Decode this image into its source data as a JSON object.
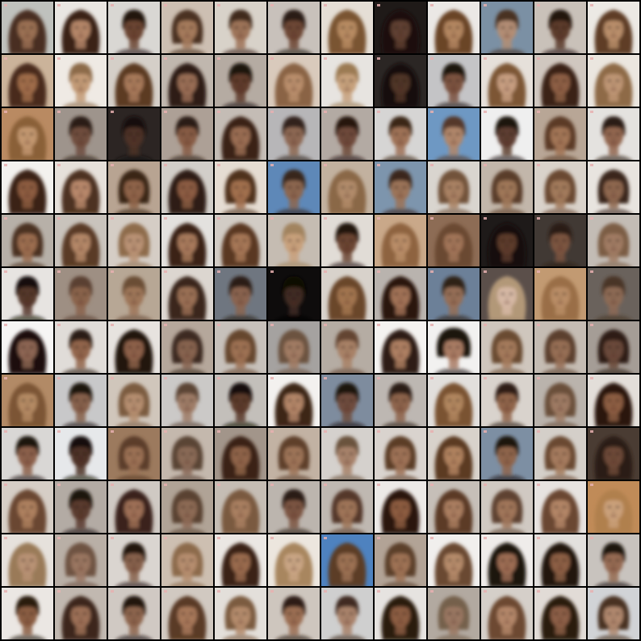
{
  "grid": {
    "rows": 12,
    "cols": 12,
    "background_color": "#000000",
    "cells": [
      [
        {
          "bg": "#bfc1bd",
          "skin": "#9a6f52",
          "hair": "#4a2f22",
          "style": "long"
        },
        {
          "bg": "#e9e6e2",
          "skin": "#b48568",
          "hair": "#3a2418",
          "style": "long"
        },
        {
          "bg": "#d9d7d3",
          "skin": "#6b4433",
          "hair": "#241611",
          "style": "short"
        },
        {
          "bg": "#cdbfb2",
          "skin": "#a57a5c",
          "hair": "#4b3222",
          "style": "medium"
        },
        {
          "bg": "#d8d2c9",
          "skin": "#9d7358",
          "hair": "#3f2a1e",
          "style": "short"
        },
        {
          "bg": "#c8c1bb",
          "skin": "#6d4634",
          "hair": "#2a1a13",
          "style": "short"
        },
        {
          "bg": "#e5ded5",
          "skin": "#b78b62",
          "hair": "#7a5430",
          "style": "long"
        },
        {
          "bg": "#1f1a18",
          "skin": "#5f4033",
          "hair": "#1a110d",
          "style": "long"
        },
        {
          "bg": "#ebe8e5",
          "skin": "#b38660",
          "hair": "#6b4528",
          "style": "long"
        },
        {
          "bg": "#7b90a4",
          "skin": "#b28d74",
          "hair": "#4a3323",
          "style": "short"
        },
        {
          "bg": "#c9c1b9",
          "skin": "#5b3a2c",
          "hair": "#24160f",
          "style": "short"
        },
        {
          "bg": "#ece9e4",
          "skin": "#b98e6a",
          "hair": "#5e3d26",
          "style": "long"
        }
      ],
      [
        {
          "bg": "#cbb39a",
          "skin": "#9f6c4a",
          "hair": "#4a2c1b",
          "style": "long"
        },
        {
          "bg": "#efeae4",
          "skin": "#c29a76",
          "hair": "#8c6a48",
          "style": "short"
        },
        {
          "bg": "#d5cfc8",
          "skin": "#a7795a",
          "hair": "#5c3a24",
          "style": "long"
        },
        {
          "bg": "#c0b7ae",
          "skin": "#986d55",
          "hair": "#2e1d15",
          "style": "long"
        },
        {
          "bg": "#b5aba2",
          "skin": "#5e3b2c",
          "hair": "#1e130e",
          "style": "short"
        },
        {
          "bg": "#d9cabc",
          "skin": "#b98e6c",
          "hair": "#8a6444",
          "style": "long"
        },
        {
          "bg": "#e7e4e0",
          "skin": "#c6a07c",
          "hair": "#9b7a52",
          "style": "short"
        },
        {
          "bg": "#2b2624",
          "skin": "#4f3427",
          "hair": "#140d0a",
          "style": "long"
        },
        {
          "bg": "#c4c4c6",
          "skin": "#7b5240",
          "hair": "#1f1510",
          "style": "short"
        },
        {
          "bg": "#e6e0da",
          "skin": "#c69d80",
          "hair": "#7d5636",
          "style": "long"
        },
        {
          "bg": "#d0c7bf",
          "skin": "#8d5f45",
          "hair": "#3a2317",
          "style": "long"
        },
        {
          "bg": "#ebe6df",
          "skin": "#be9574",
          "hair": "#8e6a46",
          "style": "long"
        }
      ],
      [
        {
          "bg": "#b98a62",
          "skin": "#c29770",
          "hair": "#8a6038",
          "style": "long"
        },
        {
          "bg": "#9e948c",
          "skin": "#6f4e3e",
          "hair": "#2c1d16",
          "style": "short"
        },
        {
          "bg": "#2c2523",
          "skin": "#4d3327",
          "hair": "#160e0b",
          "style": "short"
        },
        {
          "bg": "#ada096",
          "skin": "#875c45",
          "hair": "#2b1a12",
          "style": "short"
        },
        {
          "bg": "#c4bcb5",
          "skin": "#9a6d52",
          "hair": "#3b2419",
          "style": "long"
        },
        {
          "bg": "#b7b6b8",
          "skin": "#8d6752",
          "hair": "#33231a",
          "style": "short"
        },
        {
          "bg": "#b3aaa3",
          "skin": "#6e4a3a",
          "hair": "#26180f",
          "style": "short"
        },
        {
          "bg": "#d6d5d4",
          "skin": "#9f7257",
          "hair": "#3a2519",
          "style": "short"
        },
        {
          "bg": "#6e98c3",
          "skin": "#b0866a",
          "hair": "#55382a",
          "style": "short"
        },
        {
          "bg": "#efefef",
          "skin": "#5d3e30",
          "hair": "#1d130e",
          "style": "short"
        },
        {
          "bg": "#b8a696",
          "skin": "#a37656",
          "hair": "#5b3b26",
          "style": "medium"
        },
        {
          "bg": "#e4e2df",
          "skin": "#926650",
          "hair": "#2c1c14",
          "style": "short"
        }
      ],
      [
        {
          "bg": "#f3f1ee",
          "skin": "#8c5c40",
          "hair": "#3a2216",
          "style": "long"
        },
        {
          "bg": "#e6e0da",
          "skin": "#b7876a",
          "hair": "#4e3120",
          "style": "long"
        },
        {
          "bg": "#b8a492",
          "skin": "#8f6448",
          "hair": "#3b2518",
          "style": "medium"
        },
        {
          "bg": "#d2cec9",
          "skin": "#8b5c43",
          "hair": "#2d1b12",
          "style": "long"
        },
        {
          "bg": "#e5dcd2",
          "skin": "#a16f4e",
          "hair": "#4f301f",
          "style": "medium"
        },
        {
          "bg": "#5e88b8",
          "skin": "#8c6650",
          "hair": "#38261b",
          "style": "short"
        },
        {
          "bg": "#c2b19f",
          "skin": "#b18b6a",
          "hair": "#8a6846",
          "style": "long"
        },
        {
          "bg": "#7d95ad",
          "skin": "#9b7358",
          "hair": "#3a281d",
          "style": "short"
        },
        {
          "bg": "#d9d5cf",
          "skin": "#a98163",
          "hair": "#72523a",
          "style": "medium"
        },
        {
          "bg": "#c2b6aa",
          "skin": "#9f7758",
          "hair": "#5a3e29",
          "style": "medium"
        },
        {
          "bg": "#d9d2ca",
          "skin": "#a27a5c",
          "hair": "#6a4a32",
          "style": "medium"
        },
        {
          "bg": "#e8e4df",
          "skin": "#8f6750",
          "hair": "#3a281d",
          "style": "medium"
        }
      ],
      [
        {
          "bg": "#b7b0a8",
          "skin": "#9b6d4f",
          "hair": "#4c3120",
          "style": "medium"
        },
        {
          "bg": "#c9c3bc",
          "skin": "#b48767",
          "hair": "#5a3a25",
          "style": "long"
        },
        {
          "bg": "#d5cdc5",
          "skin": "#b99274",
          "hair": "#8e6c4c",
          "style": "medium"
        },
        {
          "bg": "#e3e1de",
          "skin": "#a7795b",
          "hair": "#3a2418",
          "style": "long"
        },
        {
          "bg": "#d2ccc5",
          "skin": "#a67756",
          "hair": "#5a3822",
          "style": "long"
        },
        {
          "bg": "#c5bcb2",
          "skin": "#c8a07c",
          "hair": "#a1835e",
          "style": "short"
        },
        {
          "bg": "#e1dcd6",
          "skin": "#6b4433",
          "hair": "#24160f",
          "style": "short"
        },
        {
          "bg": "#c9a889",
          "skin": "#b98d68",
          "hair": "#8e6440",
          "style": "long"
        },
        {
          "bg": "#8d6c55",
          "skin": "#a17458",
          "hair": "#6b4a31",
          "style": "long"
        },
        {
          "bg": "#1e1a19",
          "skin": "#5b3a2c",
          "hair": "#150d0a",
          "style": "long"
        },
        {
          "bg": "#413934",
          "skin": "#7b5441",
          "hair": "#2b1c14",
          "style": "short"
        },
        {
          "bg": "#c3bcb5",
          "skin": "#a07b63",
          "hair": "#7c5d45",
          "style": "medium"
        }
      ],
      [
        {
          "bg": "#e7e4e1",
          "skin": "#55372a",
          "hair": "#140d0a",
          "style": "short"
        },
        {
          "bg": "#9e8f83",
          "skin": "#8a634c",
          "hair": "#5a4030",
          "style": "short"
        },
        {
          "bg": "#b7a795",
          "skin": "#9e7659",
          "hair": "#6b4d35",
          "style": "short"
        },
        {
          "bg": "#dcd6d0",
          "skin": "#9a6f55",
          "hair": "#3b271b",
          "style": "long"
        },
        {
          "bg": "#6f7680",
          "skin": "#8a644f",
          "hair": "#2a1b13",
          "style": "short"
        },
        {
          "bg": "#0e0c0c",
          "skin": "#3f2b23",
          "hair": "#0a0706",
          "style": "short"
        },
        {
          "bg": "#d8d2cb",
          "skin": "#a2754f",
          "hair": "#6b462b",
          "style": "long"
        },
        {
          "bg": "#b9b3ae",
          "skin": "#a17257",
          "hair": "#2a190f",
          "style": "long"
        },
        {
          "bg": "#6c8098",
          "skin": "#956e56",
          "hair": "#2f2018",
          "style": "short"
        },
        {
          "bg": "#5b4f4a",
          "skin": "#d6b8a4",
          "hair": "#b29878",
          "style": "long"
        },
        {
          "bg": "#c29a72",
          "skin": "#b98d66",
          "hair": "#9a6e46",
          "style": "long"
        },
        {
          "bg": "#6a625c",
          "skin": "#8d6a55",
          "hair": "#4a3527",
          "style": "short"
        }
      ],
      [
        {
          "bg": "#f6f5f4",
          "skin": "#8c6552",
          "hair": "#1a110d",
          "style": "long"
        },
        {
          "bg": "#e0dcd8",
          "skin": "#92654b",
          "hair": "#2c1b12",
          "style": "short"
        },
        {
          "bg": "#e7e3df",
          "skin": "#8d614a",
          "hair": "#211610",
          "style": "long"
        },
        {
          "bg": "#b5a79b",
          "skin": "#87634f",
          "hair": "#3e2c21",
          "style": "medium"
        },
        {
          "bg": "#c7c1bb",
          "skin": "#9d7153",
          "hair": "#66462f",
          "style": "medium"
        },
        {
          "bg": "#a5a2a0",
          "skin": "#a17b63",
          "hair": "#6c523f",
          "style": "medium"
        },
        {
          "bg": "#b5acA3",
          "skin": "#a88166",
          "hair": "#634530",
          "style": "short"
        },
        {
          "bg": "#f4f2f0",
          "skin": "#ad7f62",
          "hair": "#2e1c13",
          "style": "long"
        },
        {
          "bg": "#f2f1f0",
          "skin": "#a97b64",
          "hair": "#1c120d",
          "style": "bob"
        },
        {
          "bg": "#cfc6bd",
          "skin": "#a47a5c",
          "hair": "#6b4b33",
          "style": "medium"
        },
        {
          "bg": "#c5bcb3",
          "skin": "#966e55",
          "hair": "#5c412f",
          "style": "medium"
        },
        {
          "bg": "#a59d96",
          "skin": "#6b4a3a",
          "hair": "#2e1f17",
          "style": "medium"
        }
      ],
      [
        {
          "bg": "#b28a66",
          "skin": "#b48a64",
          "hair": "#7b5534",
          "style": "long"
        },
        {
          "bg": "#c8c8c9",
          "skin": "#86604b",
          "hair": "#1d130e",
          "style": "short"
        },
        {
          "bg": "#d0c6bb",
          "skin": "#b58e70",
          "hair": "#7b5b40",
          "style": "medium"
        },
        {
          "bg": "#cbc9c7",
          "skin": "#9e7b66",
          "hair": "#5c4535",
          "style": "short"
        },
        {
          "bg": "#c3bfba",
          "skin": "#5b3b2c",
          "hair": "#160e0a",
          "style": "short"
        },
        {
          "bg": "#f3f1ef",
          "skin": "#b28567",
          "hair": "#3d2517",
          "style": "long"
        },
        {
          "bg": "#7e8c9e",
          "skin": "#6e4c3c",
          "hair": "#1f150f",
          "style": "short"
        },
        {
          "bg": "#bdb7b2",
          "skin": "#8d634b",
          "hair": "#2c1c13",
          "style": "short"
        },
        {
          "bg": "#e2dfdc",
          "skin": "#b1865f",
          "hair": "#7a5331",
          "style": "long"
        },
        {
          "bg": "#d9d3cd",
          "skin": "#8f6349",
          "hair": "#2d1c13",
          "style": "short"
        },
        {
          "bg": "#bab3ac",
          "skin": "#9e7a63",
          "hair": "#6b4f3b",
          "style": "medium"
        },
        {
          "bg": "#e3ded9",
          "skin": "#8c5d42",
          "hair": "#2a180e",
          "style": "long"
        }
      ],
      [
        {
          "bg": "#d9d7d5",
          "skin": "#8c614b",
          "hair": "#1d130e",
          "style": "short"
        },
        {
          "bg": "#e6e8ea",
          "skin": "#4e3226",
          "hair": "#130c09",
          "style": "short"
        },
        {
          "bg": "#9c7a5e",
          "skin": "#9b7154",
          "hair": "#5c3e29",
          "style": "medium"
        },
        {
          "bg": "#c4b8ad",
          "skin": "#8a6a57",
          "hair": "#5a4536",
          "style": "medium"
        },
        {
          "bg": "#a2958a",
          "skin": "#8f6448",
          "hair": "#3a2418",
          "style": "long"
        },
        {
          "bg": "#c2b2a3",
          "skin": "#9e7458",
          "hair": "#5e412c",
          "style": "medium"
        },
        {
          "bg": "#d5d1cd",
          "skin": "#a7826a",
          "hair": "#6b523e",
          "style": "short"
        },
        {
          "bg": "#d9d3ce",
          "skin": "#9e7256",
          "hair": "#5b3c28",
          "style": "medium"
        },
        {
          "bg": "#d8d2cb",
          "skin": "#b0825f",
          "hair": "#5c3b23",
          "style": "long"
        },
        {
          "bg": "#7d8fa3",
          "skin": "#8f654c",
          "hair": "#1d140f",
          "style": "short"
        },
        {
          "bg": "#d4cfc9",
          "skin": "#a67c5e",
          "hair": "#6a4a32",
          "style": "medium"
        },
        {
          "bg": "#4a3c33",
          "skin": "#6d4a38",
          "hair": "#2a1b13",
          "style": "long"
        }
      ],
      [
        {
          "bg": "#d6cec6",
          "skin": "#ad805e",
          "hair": "#6a4630",
          "style": "long"
        },
        {
          "bg": "#b3aba4",
          "skin": "#5a3b2e",
          "hair": "#1f140f",
          "style": "short"
        },
        {
          "bg": "#cfc9c3",
          "skin": "#9e7056",
          "hair": "#3a241a",
          "style": "long"
        },
        {
          "bg": "#b0a396",
          "skin": "#8d6a55",
          "hair": "#5a4333",
          "style": "medium"
        },
        {
          "bg": "#c5bdb4",
          "skin": "#a97f61",
          "hair": "#7a5a40",
          "style": "long"
        },
        {
          "bg": "#bcb5ae",
          "skin": "#7c5542",
          "hair": "#2c1c14",
          "style": "short"
        },
        {
          "bg": "#bfb8b1",
          "skin": "#9f7558",
          "hair": "#55392a",
          "style": "medium"
        },
        {
          "bg": "#ece9e6",
          "skin": "#8c5c3f",
          "hair": "#2a180f",
          "style": "long"
        },
        {
          "bg": "#c6bfb8",
          "skin": "#aa7e60",
          "hair": "#5b3b26",
          "style": "long"
        },
        {
          "bg": "#d0c9c2",
          "skin": "#a0765a",
          "hair": "#5e4330",
          "style": "medium"
        },
        {
          "bg": "#e7e3e0",
          "skin": "#b28566",
          "hair": "#6b4730",
          "style": "long"
        },
        {
          "bg": "#c08b58",
          "skin": "#caa07a",
          "hair": "#b0804e",
          "style": "long"
        }
      ],
      [
        {
          "bg": "#e6e1dc",
          "skin": "#b89274",
          "hair": "#9a7a58",
          "style": "long"
        },
        {
          "bg": "#b9afa6",
          "skin": "#9a7661",
          "hair": "#6e5242",
          "style": "medium"
        },
        {
          "bg": "#dad5d0",
          "skin": "#86604b",
          "hair": "#24180f",
          "style": "short"
        },
        {
          "bg": "#cdbfb1",
          "skin": "#b58d6e",
          "hair": "#8c6a4c",
          "style": "medium"
        },
        {
          "bg": "#ebe7e3",
          "skin": "#996a4e",
          "hair": "#3a2316",
          "style": "long"
        },
        {
          "bg": "#ece6de",
          "skin": "#c9a584",
          "hair": "#a8865f",
          "style": "long"
        },
        {
          "bg": "#4e82bf",
          "skin": "#9b7153",
          "hair": "#5c3e28",
          "style": "long"
        },
        {
          "bg": "#b2a396",
          "skin": "#9e7254",
          "hair": "#5c3f2b",
          "style": "medium"
        },
        {
          "bg": "#f1efed",
          "skin": "#b58b6b",
          "hair": "#6b4a30",
          "style": "long"
        },
        {
          "bg": "#efecea",
          "skin": "#9b6c52",
          "hair": "#1e140e",
          "style": "long"
        },
        {
          "bg": "#e3e0dd",
          "skin": "#8c5f45",
          "hair": "#24160f",
          "style": "long"
        },
        {
          "bg": "#c8c3be",
          "skin": "#956b52",
          "hair": "#1f150f",
          "style": "short"
        }
      ],
      [
        {
          "bg": "#ebe7e3",
          "skin": "#8a5d42",
          "hair": "#2a1a11",
          "style": "short"
        },
        {
          "bg": "#c1b8b0",
          "skin": "#9c7056",
          "hair": "#3c281c",
          "style": "long"
        },
        {
          "bg": "#d0c9c3",
          "skin": "#8d654e",
          "hair": "#22160f",
          "style": "short"
        },
        {
          "bg": "#d1c9c1",
          "skin": "#a7785a",
          "hair": "#5a3a25",
          "style": "long"
        },
        {
          "bg": "#e3dfda",
          "skin": "#b48b6c",
          "hair": "#7c5b3f",
          "style": "medium"
        },
        {
          "bg": "#cec6be",
          "skin": "#9b6e53",
          "hair": "#2f1e15",
          "style": "short"
        },
        {
          "bg": "#cfcfcf",
          "skin": "#a9826b",
          "hair": "#3f2b20",
          "style": "short"
        },
        {
          "bg": "#e6e3e0",
          "skin": "#8c5d42",
          "hair": "#2b1a11",
          "style": "long"
        },
        {
          "bg": "#b2a9a0",
          "skin": "#9a7762",
          "hair": "#75604c",
          "style": "medium"
        },
        {
          "bg": "#d5cfc9",
          "skin": "#b38669",
          "hair": "#6d4a32",
          "style": "long"
        },
        {
          "bg": "#e1dbd6",
          "skin": "#8c5f46",
          "hair": "#2a1a11",
          "style": "long"
        },
        {
          "bg": "#d1d3d6",
          "skin": "#b0886e",
          "hair": "#4a3121",
          "style": "medium"
        }
      ]
    ]
  }
}
